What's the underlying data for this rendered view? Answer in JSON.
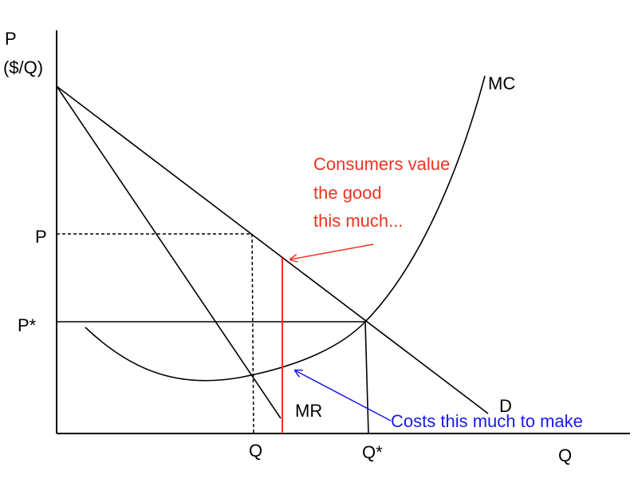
{
  "axes": {
    "y_label": "P",
    "y_unit": "($/Q)",
    "x_label": "Q"
  },
  "curves": {
    "marginal_cost": "MC",
    "marginal_revenue": "MR",
    "demand": "D"
  },
  "price_labels": {
    "monopoly_price": "P",
    "efficient_price": "P*"
  },
  "quantity_labels": {
    "monopoly_quantity": "Q",
    "efficient_quantity": "Q*"
  },
  "annotations": {
    "consumer_value": [
      "Consumers value",
      "the good",
      "this much..."
    ],
    "cost": "Costs this much to make"
  }
}
